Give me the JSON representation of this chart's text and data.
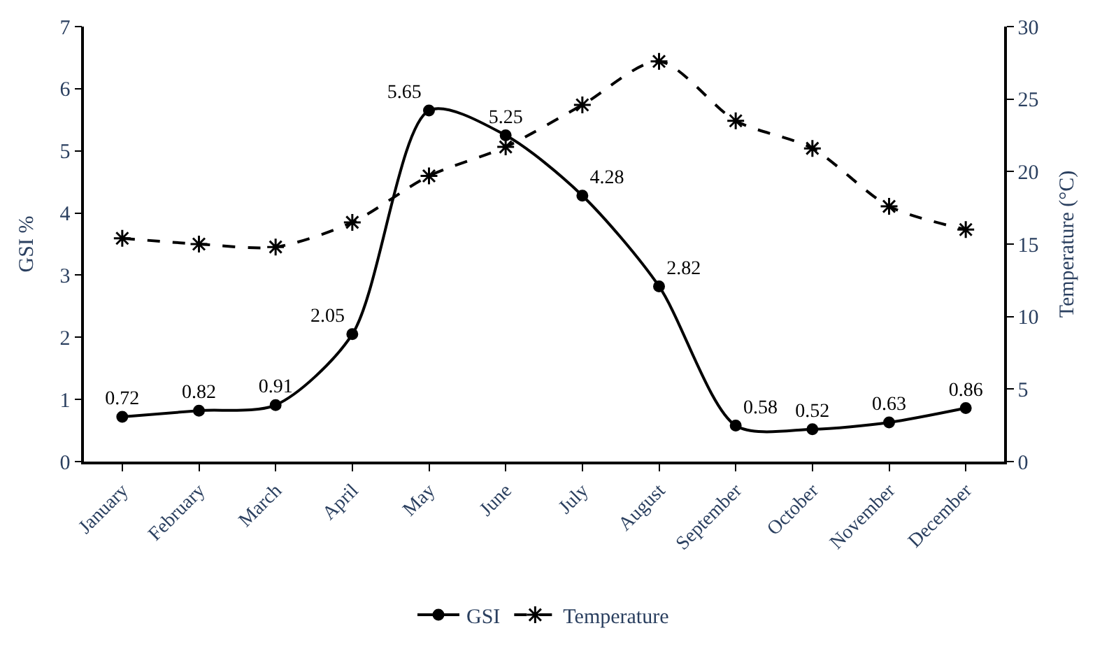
{
  "chart_data": {
    "type": "line",
    "ylabel": "GSI %",
    "y2label": "Temperature (°C)",
    "categories": [
      "January",
      "February",
      "March",
      "April",
      "May",
      "June",
      "July",
      "August",
      "September",
      "October",
      "November",
      "December"
    ],
    "series": [
      {
        "name": "GSI",
        "color": "#000000",
        "marker": "circle",
        "line_style": "solid",
        "values": [
          0.72,
          0.82,
          0.91,
          2.05,
          5.65,
          5.25,
          4.28,
          2.82,
          0.58,
          0.52,
          0.63,
          0.86
        ],
        "value_labels": [
          "0.72",
          "0.82",
          "0.91",
          "2.05",
          "5.65",
          "5.25",
          "4.28",
          "2.82",
          "0.58",
          "0.52",
          "0.63",
          "0.86"
        ]
      },
      {
        "name": "Temperature",
        "color": "#000000",
        "marker": "cross",
        "line_style": "dashed",
        "axis": "y2",
        "values": [
          15.4,
          15.0,
          14.8,
          16.5,
          19.7,
          21.7,
          24.6,
          27.6,
          23.5,
          21.6,
          17.6,
          16.0
        ]
      }
    ],
    "ylim": [
      0,
      7
    ],
    "yticks": [
      0,
      1,
      2,
      3,
      4,
      5,
      6,
      7
    ],
    "y2lim": [
      0,
      30
    ],
    "y2ticks": [
      0,
      5,
      10,
      15,
      20,
      25,
      30
    ],
    "legend": "bottom"
  }
}
